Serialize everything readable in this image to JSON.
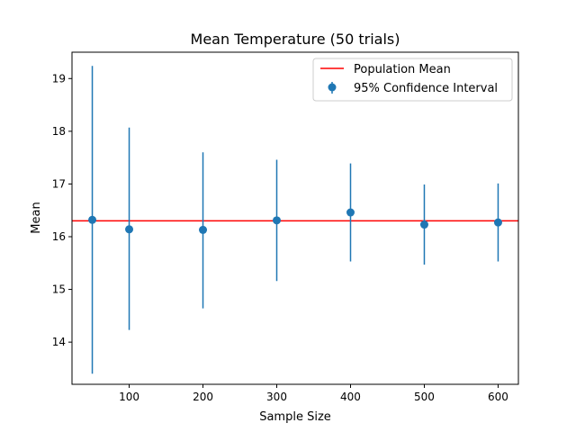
{
  "chart_data": {
    "type": "errorbar",
    "title": "Mean Temperature (50 trials)",
    "xlabel": "Sample Size",
    "ylabel": "Mean",
    "xlim": [
      22.5,
      627.5
    ],
    "ylim": [
      13.2,
      19.5
    ],
    "xticks": [
      100,
      200,
      300,
      400,
      500,
      600
    ],
    "yticks": [
      14,
      15,
      16,
      17,
      18,
      19
    ],
    "grid": false,
    "reference_line": {
      "name": "Population Mean",
      "y": 16.3,
      "color": "#ff0000"
    },
    "series": [
      {
        "name": "95% Confidence Interval",
        "color": "#1f77b4",
        "points": [
          {
            "x": 50,
            "mean": 16.32,
            "lower": 13.4,
            "upper": 19.24
          },
          {
            "x": 100,
            "mean": 16.14,
            "lower": 14.23,
            "upper": 18.07
          },
          {
            "x": 200,
            "mean": 16.13,
            "lower": 14.64,
            "upper": 17.6
          },
          {
            "x": 300,
            "mean": 16.31,
            "lower": 15.16,
            "upper": 17.46
          },
          {
            "x": 400,
            "mean": 16.46,
            "lower": 15.53,
            "upper": 17.39
          },
          {
            "x": 500,
            "mean": 16.23,
            "lower": 15.47,
            "upper": 16.99
          },
          {
            "x": 600,
            "mean": 16.27,
            "lower": 15.53,
            "upper": 17.01
          }
        ]
      }
    ],
    "legend": {
      "position": "top-right",
      "entries": [
        "Population Mean",
        "95% Confidence Interval"
      ]
    }
  }
}
